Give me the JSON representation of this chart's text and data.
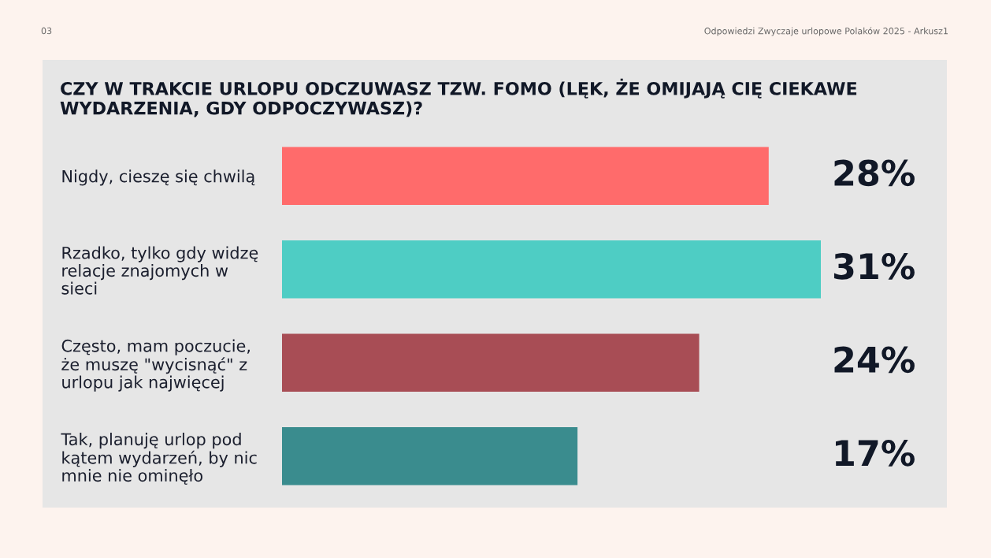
{
  "chart_data": {
    "type": "bar",
    "orientation": "horizontal",
    "title": "CZY W TRAKCIE URLOPU ODCZUWASZ TZW. FOMO (LĘK, ŻE OMIJAJĄ CIĘ CIEKAWE WYDARZENIA, GDY ODPOCZYWASZ)?",
    "categories": [
      "Nigdy, cieszę się chwilą",
      "Rzadko, tylko gdy widzę relacje znajomych w sieci",
      "Często, mam poczucie, że muszę \"wycisnąć\" z urlopu jak najwięcej",
      "Tak, planuję urlop pod kątem wydarzeń, by nic mnie nie ominęło"
    ],
    "values": [
      28,
      31,
      24,
      17
    ],
    "colors": [
      "#ff6b6b",
      "#4ecdc4",
      "#a84d55",
      "#3a8c8e"
    ],
    "value_labels": [
      "28%",
      "31%",
      "24%",
      "17%"
    ],
    "annotations": [
      "03",
      "Odpowiedzi Zwyczaje urlopowe Polaków 2025 - Arkusz1"
    ]
  }
}
